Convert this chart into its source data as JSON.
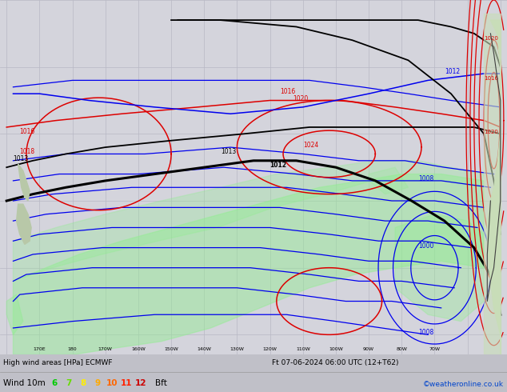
{
  "title": "High wind areas [HPa] ECMWF",
  "title_right": "Ft 07-06-2024 06:00 UTC (12+T62)",
  "subtitle": "Wind 10m",
  "credit": "©weatheronline.co.uk",
  "map_bg": "#d4d4dc",
  "land_color_nz": "#b8c8a8",
  "land_color_sa": "#c8ddb8",
  "grid_color": "#b8b8c4",
  "isobar_blue": "#0000ee",
  "isobar_red": "#dd0000",
  "isobar_black": "#000000",
  "wind_green": "#90ee90",
  "figsize": [
    6.34,
    4.9
  ],
  "dpi": 100,
  "lon_min": 158,
  "lon_max": 312,
  "lat_min": -63,
  "lat_max": -10
}
